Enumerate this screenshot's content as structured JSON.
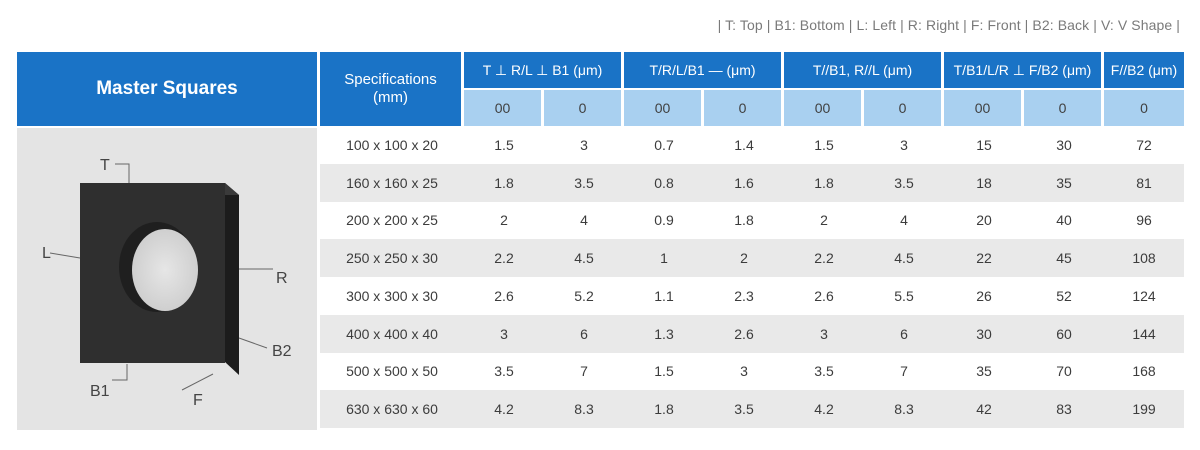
{
  "legend": "| T: Top | B1: Bottom | L: Left | R: Right | F: Front | B2: Back | V: V Shape |",
  "product_title": "Master Squares",
  "image_labels": {
    "T": "T",
    "L": "L",
    "R": "R",
    "B2": "B2",
    "B1": "B1",
    "F": "F"
  },
  "table": {
    "spec_header_line1": "Specifications",
    "spec_header_line2": "(mm)",
    "groups": [
      {
        "label": "T ⊥ R/L ⊥ B1 (μm)",
        "subs": [
          "00",
          "0"
        ]
      },
      {
        "label": "T/R/L/B1 — (μm)",
        "subs": [
          "00",
          "0"
        ]
      },
      {
        "label": "T//B1, R//L (μm)",
        "subs": [
          "00",
          "0"
        ]
      },
      {
        "label": "T/B1/L/R ⊥ F/B2 (μm)",
        "subs": [
          "00",
          "0"
        ]
      },
      {
        "label": "F//B2 (μm)",
        "subs": [
          "0"
        ]
      }
    ],
    "rows": [
      [
        "100 x 100 x 20",
        "1.5",
        "3",
        "0.7",
        "1.4",
        "1.5",
        "3",
        "15",
        "30",
        "72"
      ],
      [
        "160 x 160 x 25",
        "1.8",
        "3.5",
        "0.8",
        "1.6",
        "1.8",
        "3.5",
        "18",
        "35",
        "81"
      ],
      [
        "200 x 200 x 25",
        "2",
        "4",
        "0.9",
        "1.8",
        "2",
        "4",
        "20",
        "40",
        "96"
      ],
      [
        "250 x 250 x 30",
        "2.2",
        "4.5",
        "1",
        "2",
        "2.2",
        "4.5",
        "22",
        "45",
        "108"
      ],
      [
        "300 x 300 x 30",
        "2.6",
        "5.2",
        "1.1",
        "2.3",
        "2.6",
        "5.5",
        "26",
        "52",
        "124"
      ],
      [
        "400 x 400 x 40",
        "3",
        "6",
        "1.3",
        "2.6",
        "3",
        "6",
        "30",
        "60",
        "144"
      ],
      [
        "500 x 500 x 50",
        "3.5",
        "7",
        "1.5",
        "3",
        "3.5",
        "7",
        "35",
        "70",
        "168"
      ],
      [
        "630 x 630 x 60",
        "4.2",
        "8.3",
        "1.8",
        "3.5",
        "4.2",
        "8.3",
        "42",
        "83",
        "199"
      ]
    ]
  }
}
